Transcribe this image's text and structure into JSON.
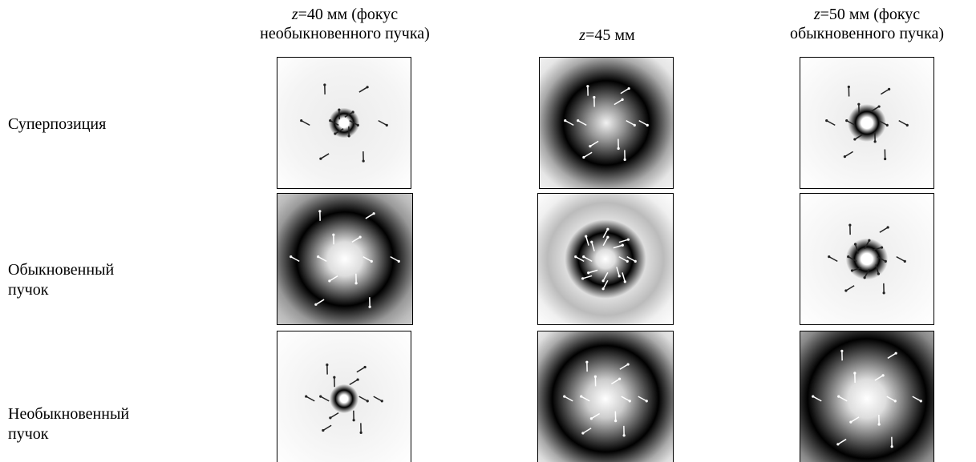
{
  "columns": [
    {
      "var": "z",
      "line1": "=40 мм (фокус",
      "line2": "необыкновенного пучка)"
    },
    {
      "var": "z",
      "line1": "=45 мм"
    },
    {
      "var": "z",
      "line1": "=50 мм (фокус",
      "line2": "обыкновенного пучка)"
    }
  ],
  "rows": [
    {
      "label": "Суперпозиция"
    },
    {
      "label": "Обыкновенный",
      "label2": "пучок"
    },
    {
      "label": "Необыкновенный",
      "label2": "пучок"
    }
  ]
}
